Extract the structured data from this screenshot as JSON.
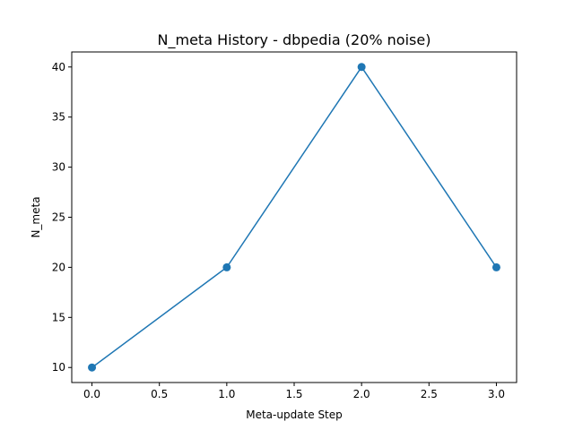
{
  "chart_data": {
    "type": "line",
    "title": "N_meta History - dbpedia (20% noise)",
    "xlabel": "Meta-update Step",
    "ylabel": "N_meta",
    "xlim": [
      -0.15,
      3.15
    ],
    "ylim": [
      8.5,
      41.5
    ],
    "xticks": [
      0.0,
      0.5,
      1.0,
      1.5,
      2.0,
      2.5,
      3.0
    ],
    "xtick_labels": [
      "0.0",
      "0.5",
      "1.0",
      "1.5",
      "2.0",
      "2.5",
      "3.0"
    ],
    "yticks": [
      10,
      15,
      20,
      25,
      30,
      35,
      40
    ],
    "ytick_labels": [
      "10",
      "15",
      "20",
      "25",
      "30",
      "35",
      "40"
    ],
    "grid": false,
    "series": [
      {
        "name": "N_meta",
        "x": [
          0,
          1,
          2,
          3
        ],
        "values": [
          10,
          20,
          40,
          20
        ],
        "color": "#1f77b4",
        "marker": "circle"
      }
    ]
  }
}
